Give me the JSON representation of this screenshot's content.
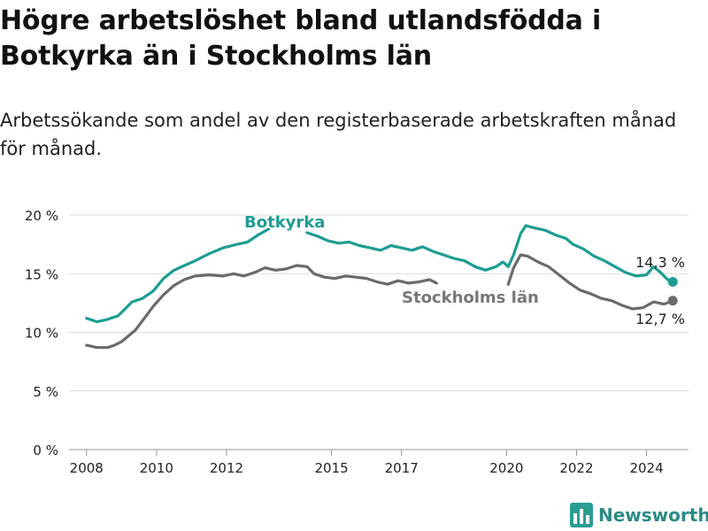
{
  "title": "Högre arbetslöshet bland utlandsfödda i Botkyrka än i Stockholms län",
  "subtitle": "Arbetssökande som andel av den registerbaserade arbetskraften månad för månad.",
  "brand": {
    "name": "Newsworthy",
    "color": "#2a9d95"
  },
  "chart_data": {
    "type": "line",
    "x_axis": {
      "min": 2007.5,
      "max": 2025.2,
      "ticks": [
        2008,
        2010,
        2012,
        2015,
        2017,
        2020,
        2022,
        2024
      ]
    },
    "y_axis": {
      "min": 0,
      "max": 20,
      "ticks": [
        0,
        5,
        10,
        15,
        20
      ],
      "tick_labels": [
        "0 %",
        "5 %",
        "10 %",
        "15 %",
        "20 %"
      ]
    },
    "grid": true,
    "series": [
      {
        "name": "Botkyrka",
        "color": "#1d9d93",
        "end_label": "14,3 %",
        "points": [
          [
            2008.0,
            11.2
          ],
          [
            2008.3,
            10.9
          ],
          [
            2008.6,
            11.1
          ],
          [
            2008.9,
            11.4
          ],
          [
            2009.1,
            12.0
          ],
          [
            2009.3,
            12.6
          ],
          [
            2009.6,
            12.9
          ],
          [
            2009.9,
            13.5
          ],
          [
            2010.2,
            14.6
          ],
          [
            2010.5,
            15.3
          ],
          [
            2010.8,
            15.7
          ],
          [
            2011.1,
            16.1
          ],
          [
            2011.5,
            16.7
          ],
          [
            2011.9,
            17.2
          ],
          [
            2012.3,
            17.5
          ],
          [
            2012.6,
            17.7
          ],
          [
            2012.9,
            18.3
          ],
          [
            2013.2,
            18.8
          ],
          [
            2014.3,
            18.5
          ],
          [
            2014.6,
            18.2
          ],
          [
            2014.9,
            17.8
          ],
          [
            2015.2,
            17.6
          ],
          [
            2015.5,
            17.7
          ],
          [
            2015.8,
            17.4
          ],
          [
            2016.1,
            17.2
          ],
          [
            2016.4,
            17.0
          ],
          [
            2016.7,
            17.4
          ],
          [
            2017.0,
            17.2
          ],
          [
            2017.3,
            17.0
          ],
          [
            2017.6,
            17.3
          ],
          [
            2017.9,
            16.9
          ],
          [
            2018.2,
            16.6
          ],
          [
            2018.5,
            16.3
          ],
          [
            2018.8,
            16.1
          ],
          [
            2019.1,
            15.6
          ],
          [
            2019.4,
            15.3
          ],
          [
            2019.7,
            15.6
          ],
          [
            2019.9,
            16.0
          ],
          [
            2020.05,
            15.6
          ],
          [
            2020.2,
            16.6
          ],
          [
            2020.4,
            18.4
          ],
          [
            2020.55,
            19.1
          ],
          [
            2020.8,
            18.9
          ],
          [
            2021.1,
            18.7
          ],
          [
            2021.4,
            18.3
          ],
          [
            2021.7,
            18.0
          ],
          [
            2021.9,
            17.5
          ],
          [
            2022.2,
            17.1
          ],
          [
            2022.5,
            16.5
          ],
          [
            2022.8,
            16.1
          ],
          [
            2023.1,
            15.6
          ],
          [
            2023.4,
            15.1
          ],
          [
            2023.7,
            14.8
          ],
          [
            2024.0,
            14.9
          ],
          [
            2024.2,
            15.6
          ],
          [
            2024.4,
            15.1
          ],
          [
            2024.6,
            14.5
          ],
          [
            2024.75,
            14.3
          ]
        ]
      },
      {
        "name": "Stockholms län",
        "color": "#6b6b6b",
        "end_label": "12,7 %",
        "points": [
          [
            2008.0,
            8.9
          ],
          [
            2008.3,
            8.7
          ],
          [
            2008.6,
            8.7
          ],
          [
            2008.8,
            8.9
          ],
          [
            2009.0,
            9.2
          ],
          [
            2009.2,
            9.7
          ],
          [
            2009.4,
            10.2
          ],
          [
            2009.6,
            11.0
          ],
          [
            2009.9,
            12.2
          ],
          [
            2010.2,
            13.2
          ],
          [
            2010.5,
            14.0
          ],
          [
            2010.8,
            14.5
          ],
          [
            2011.1,
            14.8
          ],
          [
            2011.5,
            14.9
          ],
          [
            2011.9,
            14.8
          ],
          [
            2012.2,
            15.0
          ],
          [
            2012.5,
            14.8
          ],
          [
            2012.8,
            15.1
          ],
          [
            2013.1,
            15.5
          ],
          [
            2013.4,
            15.3
          ],
          [
            2013.7,
            15.4
          ],
          [
            2014.0,
            15.7
          ],
          [
            2014.3,
            15.6
          ],
          [
            2014.5,
            15.0
          ],
          [
            2014.8,
            14.7
          ],
          [
            2015.1,
            14.6
          ],
          [
            2015.4,
            14.8
          ],
          [
            2015.7,
            14.7
          ],
          [
            2016.0,
            14.6
          ],
          [
            2016.3,
            14.3
          ],
          [
            2016.6,
            14.1
          ],
          [
            2016.9,
            14.4
          ],
          [
            2017.2,
            14.2
          ],
          [
            2017.5,
            14.3
          ],
          [
            2017.8,
            14.5
          ],
          [
            2018.0,
            14.2
          ],
          [
            2020.05,
            14.1
          ],
          [
            2020.2,
            15.5
          ],
          [
            2020.4,
            16.6
          ],
          [
            2020.6,
            16.5
          ],
          [
            2020.9,
            16.0
          ],
          [
            2021.2,
            15.6
          ],
          [
            2021.5,
            14.9
          ],
          [
            2021.8,
            14.2
          ],
          [
            2022.1,
            13.6
          ],
          [
            2022.4,
            13.3
          ],
          [
            2022.7,
            12.9
          ],
          [
            2023.0,
            12.7
          ],
          [
            2023.3,
            12.3
          ],
          [
            2023.6,
            12.0
          ],
          [
            2023.9,
            12.1
          ],
          [
            2024.2,
            12.6
          ],
          [
            2024.5,
            12.4
          ],
          [
            2024.75,
            12.7
          ]
        ]
      }
    ],
    "annotations": [
      {
        "text": "Botkyrka",
        "series": "Botkyrka"
      },
      {
        "text": "Stockholms län",
        "series": "Stockholms län"
      }
    ]
  }
}
